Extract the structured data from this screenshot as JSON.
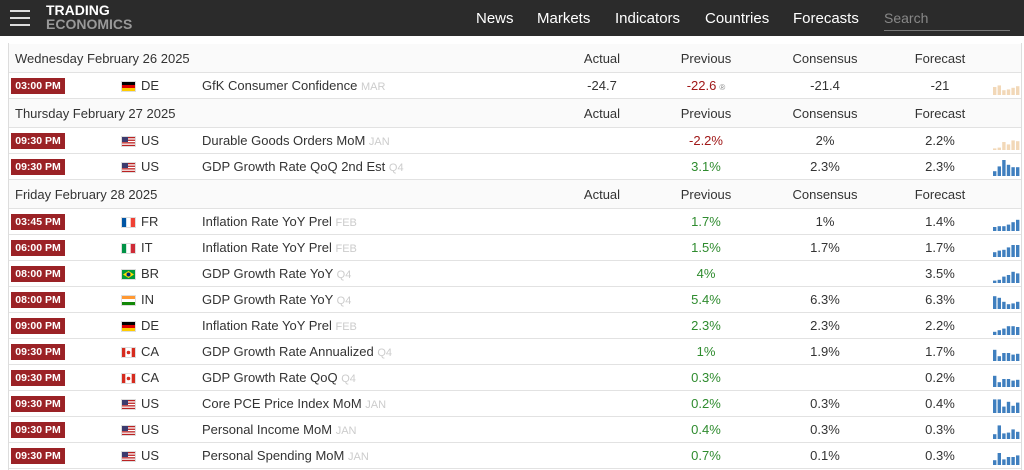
{
  "nav": {
    "logo": [
      "TRADING",
      "ECONOMICS"
    ],
    "links": [
      "News",
      "Markets",
      "Indicators",
      "Countries",
      "Forecasts"
    ],
    "search": "Search"
  },
  "days": [
    {
      "date": "Wednesday February 26 2025",
      "columns": [
        "Actual",
        "Previous",
        "Consensus",
        "Forecast"
      ],
      "events": [
        {
          "time": "03:00 PM",
          "country": "DE",
          "event": "GfK Consumer Confidence",
          "reference": "MAR",
          "actual": "-24.7",
          "previous": "-22.6",
          "previous_color": "#a01818",
          "revised": "®",
          "consensus": "-21.4",
          "forecast": "-21",
          "spark": {
            "color": "#f2d8b8",
            "values": [
              0.5,
              0.6,
              0.3,
              0.35,
              0.45,
              0.55
            ]
          }
        }
      ]
    },
    {
      "date": "Thursday February 27 2025",
      "columns": [
        "Actual",
        "Previous",
        "Consensus",
        "Forecast"
      ],
      "events": [
        {
          "time": "09:30 PM",
          "country": "US",
          "event": "Durable Goods Orders MoM",
          "reference": "JAN",
          "previous": "-2.2%",
          "previous_color": "#a01818",
          "consensus": "2%",
          "forecast": "2.2%",
          "spark": {
            "color": "#f2d8b8",
            "values": [
              0.1,
              0.15,
              0.5,
              0.35,
              0.6,
              0.55
            ]
          }
        },
        {
          "time": "09:30 PM",
          "country": "US",
          "event": "GDP Growth Rate QoQ 2nd Est",
          "reference": "Q4",
          "previous": "3.1%",
          "previous_color": "#2e8b2e",
          "consensus": "2.3%",
          "forecast": "2.3%",
          "spark": {
            "color": "#3f7fbf",
            "values": [
              0.3,
              0.6,
              1,
              0.7,
              0.55,
              0.55
            ]
          }
        }
      ]
    },
    {
      "date": "Friday February 28 2025",
      "columns": [
        "Actual",
        "Previous",
        "Consensus",
        "Forecast"
      ],
      "events": [
        {
          "time": "03:45 PM",
          "country": "FR",
          "event": "Inflation Rate YoY Prel",
          "reference": "FEB",
          "previous": "1.7%",
          "previous_color": "#2e8b2e",
          "consensus": "1%",
          "forecast": "1.4%",
          "spark": {
            "color": "#3f7fbf",
            "values": [
              0.25,
              0.3,
              0.3,
              0.4,
              0.55,
              0.7
            ]
          }
        },
        {
          "time": "06:00 PM",
          "country": "IT",
          "event": "Inflation Rate YoY Prel",
          "reference": "FEB",
          "previous": "1.5%",
          "previous_color": "#2e8b2e",
          "consensus": "1.7%",
          "forecast": "1.7%",
          "spark": {
            "color": "#3f7fbf",
            "values": [
              0.3,
              0.4,
              0.45,
              0.6,
              0.75,
              0.75
            ]
          }
        },
        {
          "time": "08:00 PM",
          "country": "BR",
          "event": "GDP Growth Rate YoY",
          "reference": "Q4",
          "previous": "4%",
          "previous_color": "#2e8b2e",
          "forecast": "3.5%",
          "spark": {
            "color": "#3f7fbf",
            "values": [
              0.15,
              0.2,
              0.4,
              0.5,
              0.7,
              0.6
            ]
          }
        },
        {
          "time": "08:00 PM",
          "country": "IN",
          "event": "GDP Growth Rate YoY",
          "reference": "Q4",
          "previous": "5.4%",
          "previous_color": "#2e8b2e",
          "consensus": "6.3%",
          "forecast": "6.3%",
          "spark": {
            "color": "#3f7fbf",
            "values": [
              0.8,
              0.7,
              0.45,
              0.3,
              0.35,
              0.45
            ]
          }
        },
        {
          "time": "09:00 PM",
          "country": "DE",
          "event": "Inflation Rate YoY Prel",
          "reference": "FEB",
          "previous": "2.3%",
          "previous_color": "#2e8b2e",
          "consensus": "2.3%",
          "forecast": "2.2%",
          "spark": {
            "color": "#3f7fbf",
            "values": [
              0.2,
              0.3,
              0.4,
              0.55,
              0.55,
              0.5
            ]
          }
        },
        {
          "time": "09:30 PM",
          "country": "CA",
          "event": "GDP Growth Rate Annualized",
          "reference": "Q4",
          "previous": "1%",
          "previous_color": "#2e8b2e",
          "consensus": "1.9%",
          "forecast": "1.7%",
          "spark": {
            "color": "#3f7fbf",
            "values": [
              0.7,
              0.3,
              0.5,
              0.5,
              0.4,
              0.45
            ]
          }
        },
        {
          "time": "09:30 PM",
          "country": "CA",
          "event": "GDP Growth Rate QoQ",
          "reference": "Q4",
          "previous": "0.3%",
          "previous_color": "#2e8b2e",
          "forecast": "0.2%",
          "spark": {
            "color": "#3f7fbf",
            "values": [
              0.7,
              0.3,
              0.5,
              0.5,
              0.4,
              0.45
            ]
          }
        },
        {
          "time": "09:30 PM",
          "country": "US",
          "event": "Core PCE Price Index MoM",
          "reference": "JAN",
          "previous": "0.2%",
          "previous_color": "#2e8b2e",
          "consensus": "0.3%",
          "forecast": "0.4%",
          "spark": {
            "color": "#3f7fbf",
            "values": [
              0.85,
              0.85,
              0.4,
              0.7,
              0.45,
              0.65
            ]
          }
        },
        {
          "time": "09:30 PM",
          "country": "US",
          "event": "Personal Income MoM",
          "reference": "JAN",
          "previous": "0.4%",
          "previous_color": "#2e8b2e",
          "consensus": "0.3%",
          "forecast": "0.3%",
          "spark": {
            "color": "#3f7fbf",
            "values": [
              0.3,
              0.85,
              0.35,
              0.4,
              0.6,
              0.45
            ]
          }
        },
        {
          "time": "09:30 PM",
          "country": "US",
          "event": "Personal Spending MoM",
          "reference": "JAN",
          "previous": "0.7%",
          "previous_color": "#2e8b2e",
          "consensus": "0.1%",
          "forecast": "0.3%",
          "spark": {
            "color": "#3f7fbf",
            "values": [
              0.3,
              0.75,
              0.35,
              0.5,
              0.5,
              0.6
            ]
          }
        }
      ]
    }
  ]
}
